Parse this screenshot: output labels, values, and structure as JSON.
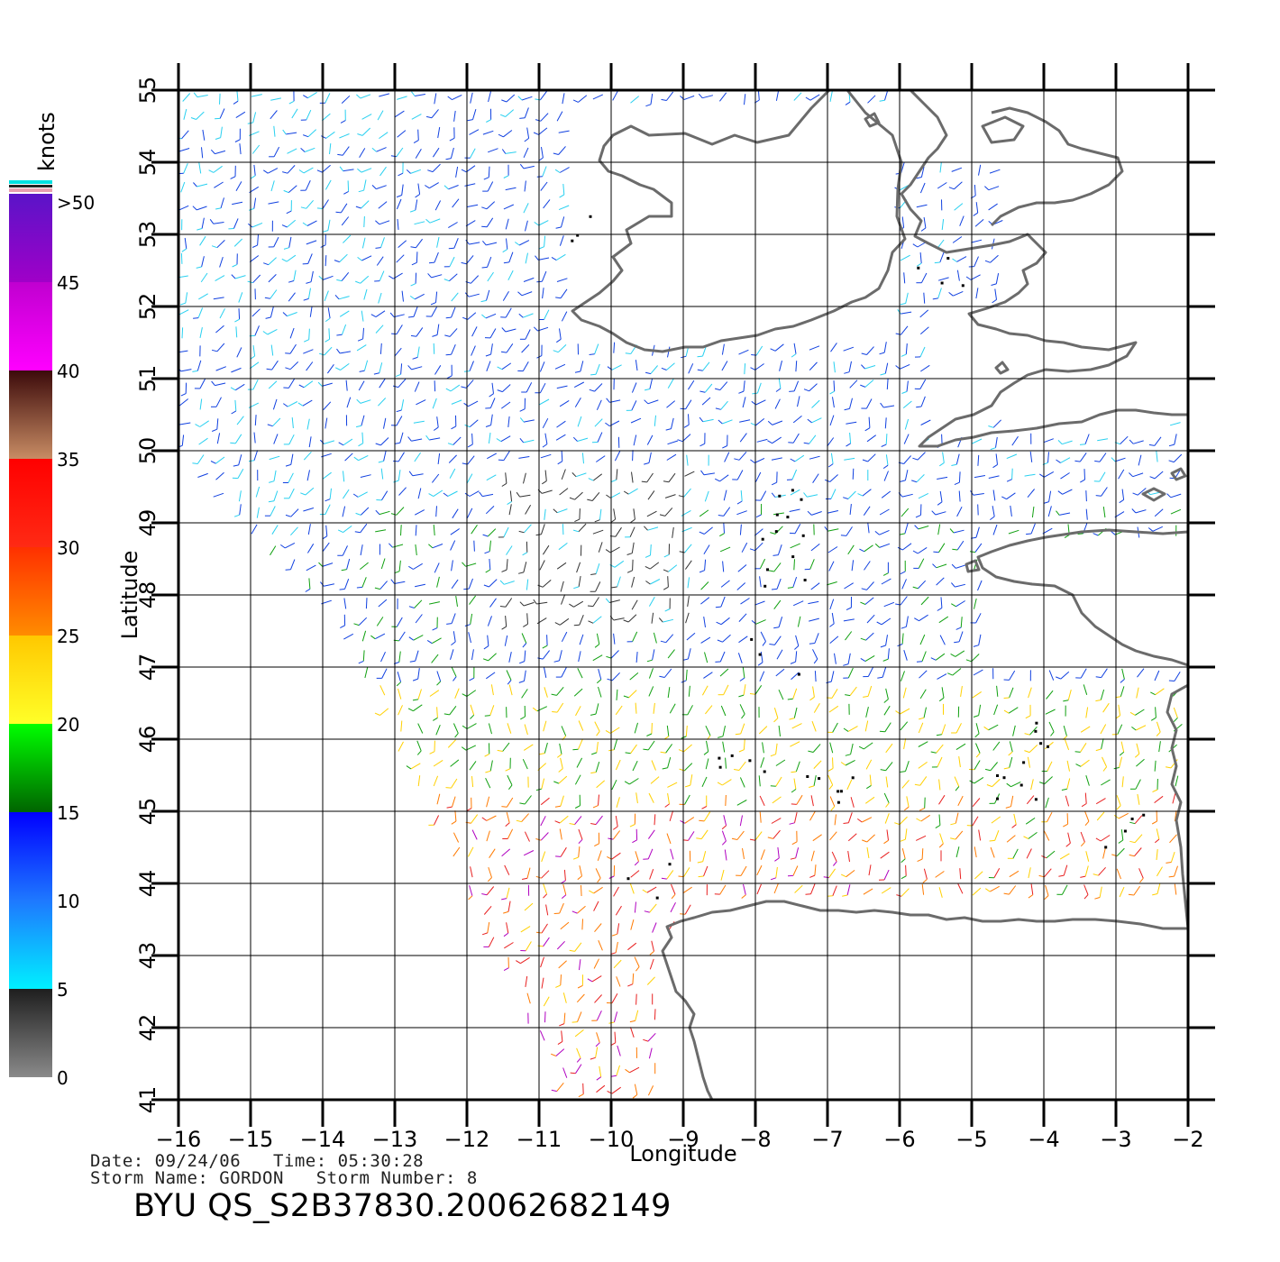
{
  "map": {
    "xlabel": "Longitude",
    "ylabel": "Latitude",
    "lon_range": [
      -16,
      -2
    ],
    "lat_range": [
      41,
      55
    ],
    "lon_ticks": [
      "−16",
      "−15",
      "−14",
      "−13",
      "−12",
      "−11",
      "−10",
      "−9",
      "−8",
      "−7",
      "−6",
      "−5",
      "−4",
      "−3",
      "−2"
    ],
    "lat_ticks": [
      "41",
      "42",
      "43",
      "44",
      "45",
      "46",
      "47",
      "48",
      "49",
      "50",
      "51",
      "52",
      "53",
      "54",
      "55"
    ],
    "grid": true,
    "coastline_color": "#6b6b6b",
    "rain_flag_color": "#000000"
  },
  "colorbar": {
    "title": "knots",
    "labels": [
      ">50",
      "45",
      "40",
      "35",
      "30",
      "25",
      "20",
      "15",
      "10",
      "5",
      "0"
    ],
    "bands": [
      {
        "from": 0,
        "to": 5,
        "colors": [
          "#8a8a8a",
          "#1e1e1e"
        ]
      },
      {
        "from": 5,
        "to": 10,
        "colors": [
          "#00f0ff",
          "#1e78ff"
        ]
      },
      {
        "from": 10,
        "to": 15,
        "colors": [
          "#1e78ff",
          "#0000ff"
        ]
      },
      {
        "from": 15,
        "to": 20,
        "colors": [
          "#006400",
          "#00ff00"
        ]
      },
      {
        "from": 20,
        "to": 25,
        "colors": [
          "#ffff28",
          "#ffc800"
        ]
      },
      {
        "from": 25,
        "to": 30,
        "colors": [
          "#ff8c00",
          "#ff3000"
        ]
      },
      {
        "from": 30,
        "to": 35,
        "colors": [
          "#ff2a14",
          "#ff0000"
        ]
      },
      {
        "from": 35,
        "to": 40,
        "colors": [
          "#c88c64",
          "#3c0a0a"
        ]
      },
      {
        "from": 40,
        "to": 45,
        "colors": [
          "#ff00ff",
          "#c000d0"
        ]
      },
      {
        "from": 45,
        "to": 50,
        "colors": [
          "#a000c8",
          "#5a14c8"
        ]
      }
    ]
  },
  "footer": {
    "date_line": "Date: 09/24/06   Time: 05:30:28",
    "storm_line": "Storm Name: GORDON   Storm Number: 8",
    "file_id": "BYU QS_S2B37830.20062682149"
  }
}
